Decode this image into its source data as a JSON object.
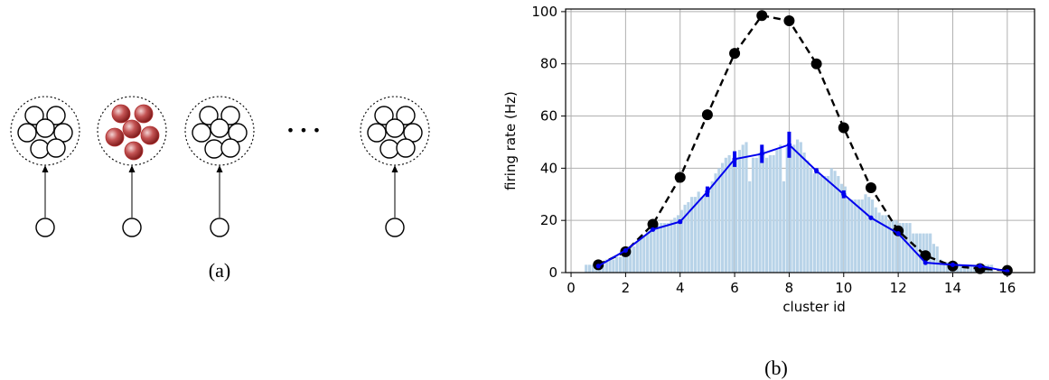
{
  "panel_a": {
    "caption": "(a)",
    "ellipsis": "• • •",
    "active_color": "#b03030",
    "neuron_color": "#000000"
  },
  "panel_b": {
    "caption": "(b)"
  },
  "chart_data": {
    "type": "line",
    "title": "",
    "xlabel": "cluster id",
    "ylabel": "firing rate (Hz)",
    "xlim": [
      -0.2,
      17.0
    ],
    "ylim": [
      0,
      101
    ],
    "xticks": [
      0,
      2,
      4,
      6,
      8,
      10,
      12,
      14,
      16
    ],
    "yticks": [
      0,
      20,
      40,
      60,
      80,
      100
    ],
    "grid": true,
    "series": [
      {
        "style": "dashed",
        "color": "#000000",
        "marker": "circle",
        "x": [
          1,
          2,
          3,
          4,
          5,
          6,
          7,
          8,
          9,
          10,
          11,
          12,
          13,
          14,
          15,
          16
        ],
        "y": [
          3,
          8,
          18.5,
          36.5,
          60.5,
          84,
          98.5,
          96.5,
          80,
          55.5,
          32.5,
          16,
          6.5,
          2.5,
          1.5,
          0.8
        ]
      },
      {
        "style": "solid",
        "color": "#0000ee",
        "marker": "errorbar",
        "x": [
          1,
          2,
          3,
          4,
          5,
          6,
          7,
          8,
          9,
          10,
          11,
          12,
          13,
          14,
          15,
          16
        ],
        "y": [
          2.5,
          8.5,
          16.5,
          19.5,
          31,
          43.5,
          45.5,
          49,
          39,
          30,
          21,
          15,
          3.8,
          3,
          2.5,
          0.5
        ],
        "err": [
          0.5,
          0.5,
          0.5,
          0.8,
          2,
          3,
          3.5,
          5,
          1,
          1.5,
          0.5,
          0.5,
          0.3,
          0.3,
          0.3,
          0.3
        ]
      }
    ],
    "histogram": {
      "color": "#b8d3e8",
      "x_start": 0.5,
      "bin_width": 0.125,
      "values": [
        3,
        3,
        3,
        3,
        3,
        3,
        5,
        5,
        5,
        6,
        6,
        9,
        9,
        10,
        10,
        12,
        13,
        14,
        16,
        17,
        18,
        18,
        19,
        19,
        19,
        20,
        21,
        22,
        24,
        26,
        27,
        29,
        29,
        31,
        29,
        30,
        32,
        35,
        38,
        40,
        42,
        44,
        45,
        42,
        44,
        47,
        49,
        50,
        35,
        44,
        44,
        46,
        47,
        44,
        45,
        45,
        47,
        49,
        35,
        48,
        48,
        49,
        51,
        50,
        46,
        43,
        40,
        38,
        38,
        37,
        37,
        37,
        40,
        39,
        37,
        34,
        33,
        28,
        28,
        28,
        28,
        28,
        30,
        29,
        28,
        25,
        23,
        22,
        22,
        20,
        20,
        20,
        19,
        19,
        19,
        19,
        15,
        15,
        15,
        15,
        15,
        15,
        11,
        10,
        5,
        4,
        4,
        4,
        3.5,
        3,
        3,
        3,
        3,
        3,
        3,
        3,
        3,
        3,
        3,
        3
      ]
    }
  }
}
